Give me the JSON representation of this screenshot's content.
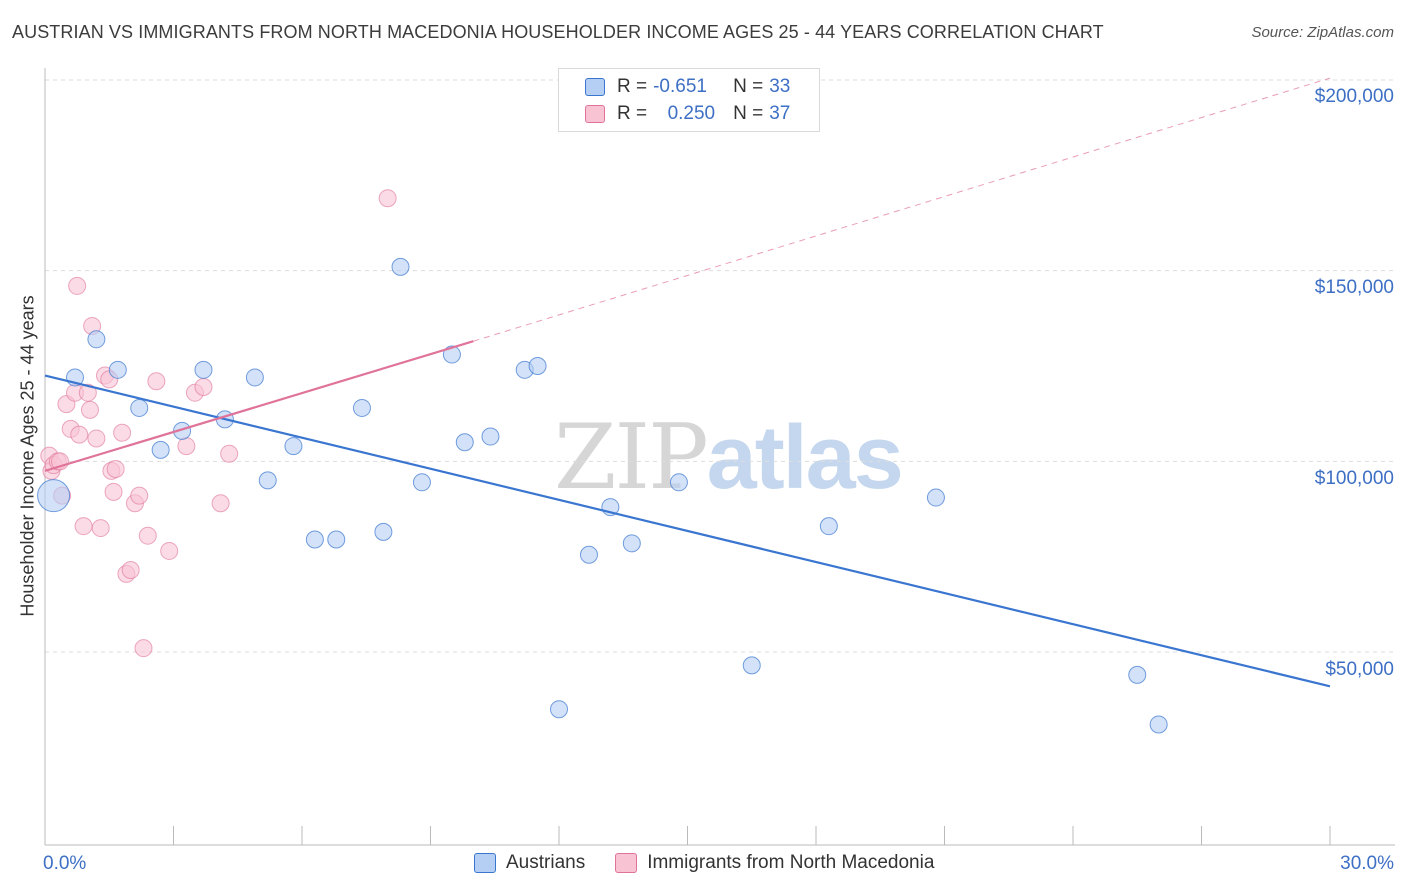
{
  "title": "AUSTRIAN VS IMMIGRANTS FROM NORTH MACEDONIA HOUSEHOLDER INCOME AGES 25 - 44 YEARS CORRELATION CHART",
  "source": "Source: ZipAtlas.com",
  "watermark": {
    "zip": "ZIP",
    "atlas": "atlas"
  },
  "legend": {
    "r_label": "R =",
    "n_label": "N =",
    "series": [
      {
        "r": "-0.651",
        "n": "33"
      },
      {
        "r": "0.250",
        "n": "37"
      }
    ]
  },
  "chart_data": {
    "type": "scatter",
    "title": "AUSTRIAN VS IMMIGRANTS FROM NORTH MACEDONIA HOUSEHOLDER INCOME AGES 25 - 44 YEARS CORRELATION CHART",
    "xlabel": "",
    "ylabel": "Householder Income Ages 25 - 44 years",
    "xlim": [
      0,
      30
    ],
    "ylim": [
      5000,
      205000
    ],
    "x_tick_labels": [
      "0.0%",
      "30.0%"
    ],
    "y_ticks": [
      50000,
      100000,
      150000,
      200000
    ],
    "y_tick_labels": [
      "$50,000",
      "$100,000",
      "$150,000",
      "$200,000"
    ],
    "grid": true,
    "colors": {
      "austrians": "#3a76d0",
      "macedonia": "#e0739a",
      "austrians_fill": "#b5cff4",
      "macedonia_fill": "#f8c3d3"
    },
    "series": [
      {
        "name": "Austrians",
        "color": "#3a76d0",
        "points": [
          [
            0.2,
            91000
          ],
          [
            0.7,
            122000
          ],
          [
            1.2,
            132000
          ],
          [
            1.7,
            124000
          ],
          [
            2.2,
            114000
          ],
          [
            2.7,
            103000
          ],
          [
            3.2,
            108000
          ],
          [
            3.7,
            124000
          ],
          [
            4.2,
            111000
          ],
          [
            4.9,
            122000
          ],
          [
            5.2,
            95000
          ],
          [
            5.8,
            104000
          ],
          [
            6.3,
            79500
          ],
          [
            6.8,
            79500
          ],
          [
            7.4,
            114000
          ],
          [
            7.9,
            81500
          ],
          [
            8.3,
            151000
          ],
          [
            8.8,
            94500
          ],
          [
            9.5,
            128000
          ],
          [
            9.8,
            105000
          ],
          [
            10.4,
            106500
          ],
          [
            11.2,
            124000
          ],
          [
            11.5,
            125000
          ],
          [
            12.0,
            35000
          ],
          [
            12.7,
            75500
          ],
          [
            13.2,
            88000
          ],
          [
            13.7,
            78500
          ],
          [
            14.8,
            94500
          ],
          [
            16.5,
            46500
          ],
          [
            18.3,
            83000
          ],
          [
            20.8,
            90500
          ],
          [
            25.5,
            44000
          ],
          [
            26.0,
            31000
          ]
        ],
        "trend": {
          "x": [
            0,
            30
          ],
          "y": [
            122500,
            41000
          ]
        }
      },
      {
        "name": "Immigrants from North Macedonia",
        "color": "#e0739a",
        "points": [
          [
            0.1,
            101500
          ],
          [
            0.15,
            97500
          ],
          [
            0.2,
            99000
          ],
          [
            0.3,
            100000
          ],
          [
            0.35,
            100000
          ],
          [
            0.4,
            91000
          ],
          [
            0.5,
            115000
          ],
          [
            0.6,
            108500
          ],
          [
            0.7,
            118000
          ],
          [
            0.75,
            146000
          ],
          [
            0.8,
            107000
          ],
          [
            0.9,
            83000
          ],
          [
            1.0,
            118000
          ],
          [
            1.05,
            113500
          ],
          [
            1.1,
            135500
          ],
          [
            1.2,
            106000
          ],
          [
            1.3,
            82500
          ],
          [
            1.4,
            122500
          ],
          [
            1.5,
            121500
          ],
          [
            1.55,
            97500
          ],
          [
            1.6,
            92000
          ],
          [
            1.65,
            98000
          ],
          [
            1.8,
            107500
          ],
          [
            1.9,
            70500
          ],
          [
            2.0,
            71500
          ],
          [
            2.1,
            89000
          ],
          [
            2.2,
            91000
          ],
          [
            2.3,
            51000
          ],
          [
            2.4,
            80500
          ],
          [
            2.6,
            121000
          ],
          [
            2.9,
            76500
          ],
          [
            3.3,
            104000
          ],
          [
            3.5,
            118000
          ],
          [
            3.7,
            119500
          ],
          [
            4.1,
            89000
          ],
          [
            4.3,
            102000
          ],
          [
            8.0,
            169000
          ]
        ],
        "trend": {
          "x": [
            0,
            10.0
          ],
          "y": [
            97500,
            131500
          ]
        },
        "trend_extension": {
          "x": [
            10.0,
            30
          ],
          "y": [
            131500,
            200500
          ]
        }
      }
    ]
  },
  "bottom_legend": [
    "Austrians",
    "Immigrants from North Macedonia"
  ]
}
